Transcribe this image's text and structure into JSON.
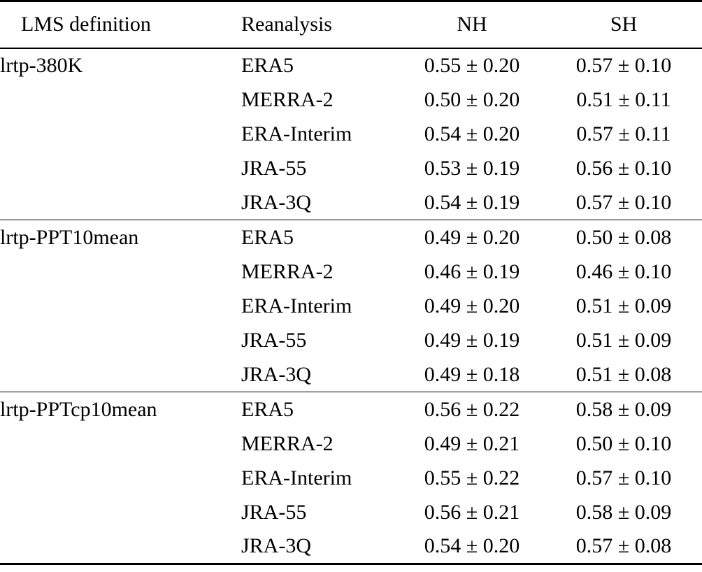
{
  "table": {
    "columns": {
      "definition": "LMS definition",
      "reanalysis": "Reanalysis",
      "nh": "NH",
      "sh": "SH"
    },
    "groups": [
      {
        "definition": "lrtp-380K",
        "rows": [
          {
            "reanalysis": "ERA5",
            "nh": "0.55 ± 0.20",
            "sh": "0.57 ± 0.10"
          },
          {
            "reanalysis": "MERRA-2",
            "nh": "0.50 ± 0.20",
            "sh": "0.51 ± 0.11"
          },
          {
            "reanalysis": "ERA-Interim",
            "nh": "0.54 ± 0.20",
            "sh": "0.57 ± 0.11"
          },
          {
            "reanalysis": "JRA-55",
            "nh": "0.53 ± 0.19",
            "sh": "0.56 ± 0.10"
          },
          {
            "reanalysis": "JRA-3Q",
            "nh": "0.54 ± 0.19",
            "sh": "0.57 ± 0.10"
          }
        ]
      },
      {
        "definition": "lrtp-PPT10mean",
        "rows": [
          {
            "reanalysis": "ERA5",
            "nh": "0.49 ± 0.20",
            "sh": "0.50 ± 0.08"
          },
          {
            "reanalysis": "MERRA-2",
            "nh": "0.46 ± 0.19",
            "sh": "0.46 ± 0.10"
          },
          {
            "reanalysis": "ERA-Interim",
            "nh": "0.49 ± 0.20",
            "sh": "0.51 ± 0.09"
          },
          {
            "reanalysis": "JRA-55",
            "nh": "0.49 ± 0.19",
            "sh": "0.51 ± 0.09"
          },
          {
            "reanalysis": "JRA-3Q",
            "nh": "0.49 ± 0.18",
            "sh": "0.51 ± 0.08"
          }
        ]
      },
      {
        "definition": "lrtp-PPTcp10mean",
        "rows": [
          {
            "reanalysis": "ERA5",
            "nh": "0.56 ± 0.22",
            "sh": "0.58 ± 0.09"
          },
          {
            "reanalysis": "MERRA-2",
            "nh": "0.49 ± 0.21",
            "sh": "0.50 ± 0.10"
          },
          {
            "reanalysis": "ERA-Interim",
            "nh": "0.55 ± 0.22",
            "sh": "0.57 ± 0.10"
          },
          {
            "reanalysis": "JRA-55",
            "nh": "0.56 ± 0.21",
            "sh": "0.58 ± 0.09"
          },
          {
            "reanalysis": "JRA-3Q",
            "nh": "0.54 ± 0.20",
            "sh": "0.57 ± 0.08"
          }
        ]
      }
    ]
  }
}
